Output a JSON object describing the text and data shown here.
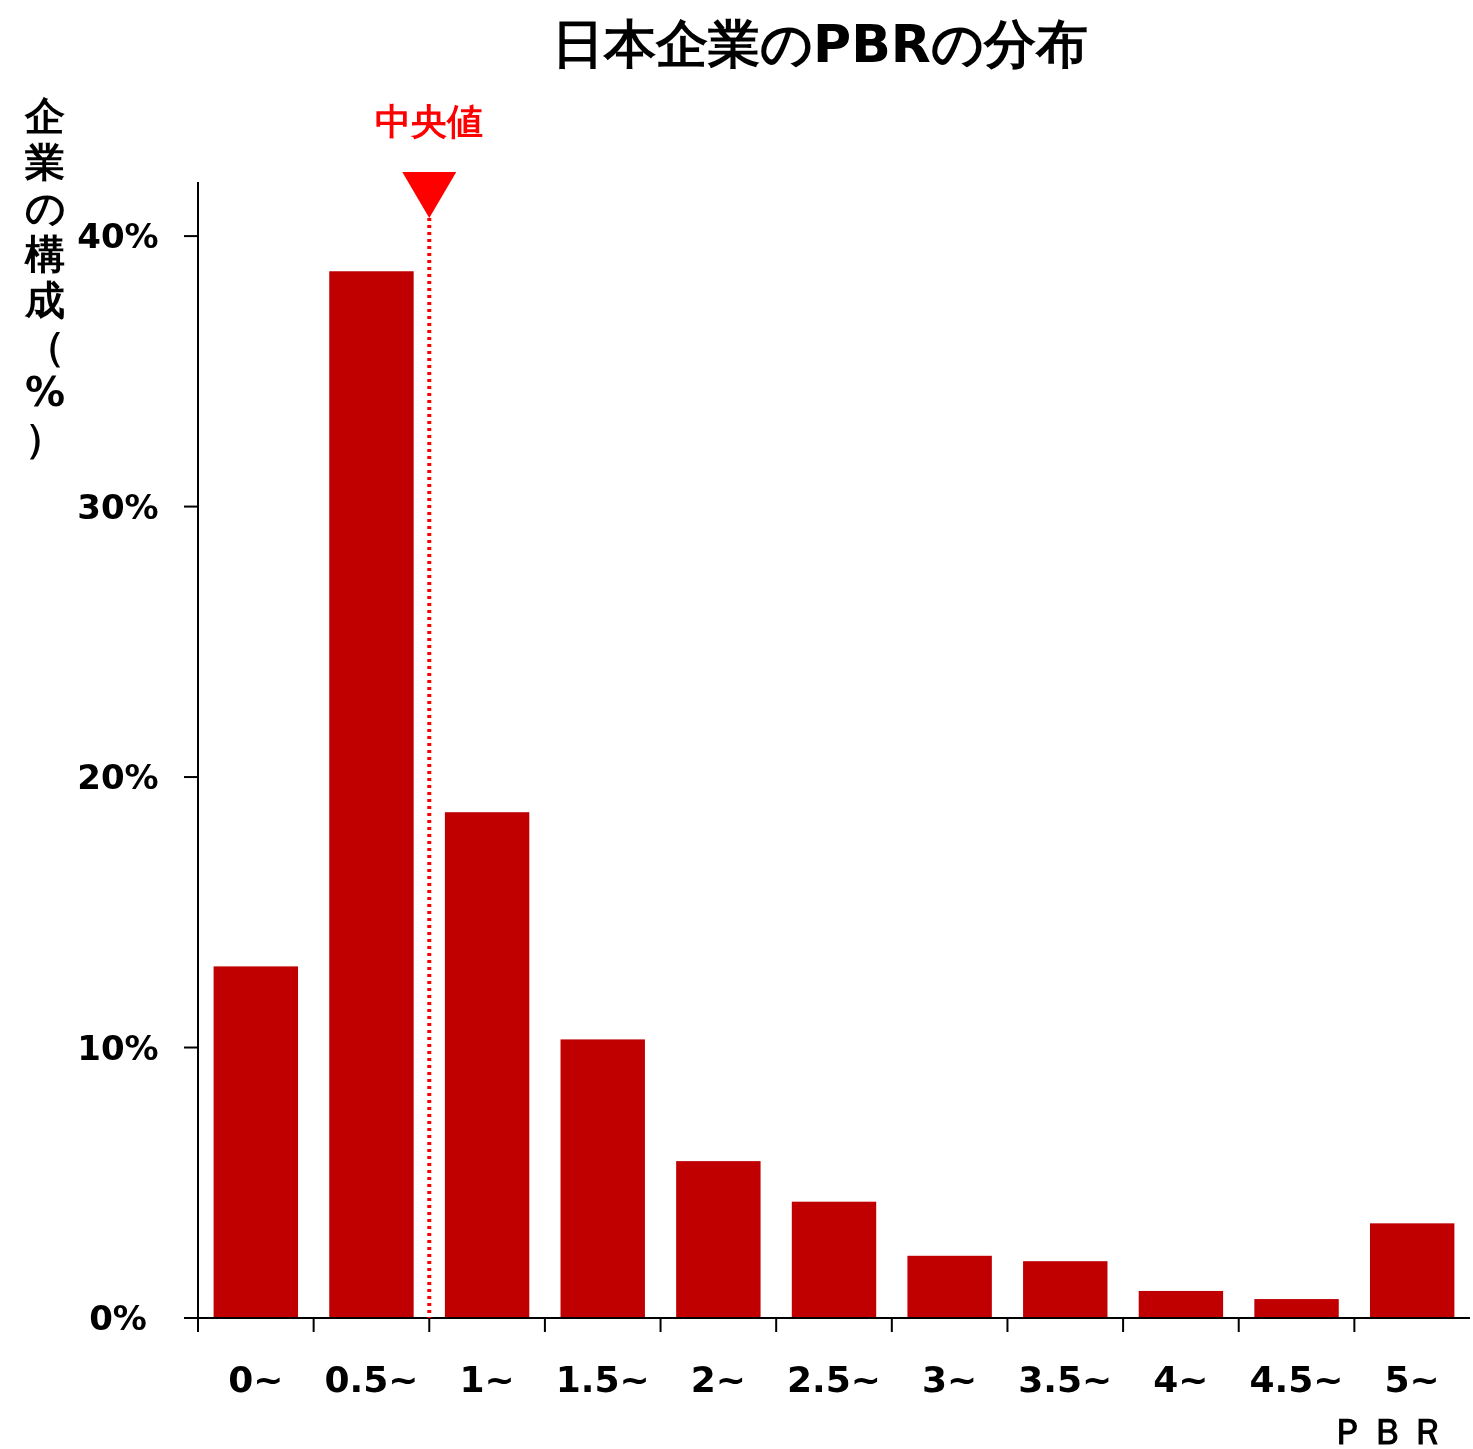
{
  "chart_data": {
    "type": "bar",
    "title": "日本企業のPBRの分布",
    "ylabel": "企業の構成（%）",
    "xlabel": "ＰＢＲ",
    "categories": [
      "0~",
      "0.5~",
      "1~",
      "1.5~",
      "2~",
      "2.5~",
      "3~",
      "3.5~",
      "4~",
      "4.5~",
      "5~"
    ],
    "values": [
      13.0,
      38.7,
      18.7,
      10.3,
      5.8,
      4.3,
      2.3,
      2.1,
      1.0,
      0.7,
      3.5
    ],
    "color": "#c00000",
    "ylim": [
      0,
      42
    ],
    "yticks": [
      {
        "value": 0,
        "label": "0%"
      },
      {
        "value": 10,
        "label": "10%"
      },
      {
        "value": 20,
        "label": "20%"
      },
      {
        "value": 30,
        "label": "30%"
      },
      {
        "value": 40,
        "label": "40%"
      }
    ],
    "ref_lines": [
      {
        "axis": "x",
        "value": "1~",
        "label": "中央値",
        "color": "#ff0000",
        "line_style": "dotted"
      }
    ],
    "grid": false
  }
}
